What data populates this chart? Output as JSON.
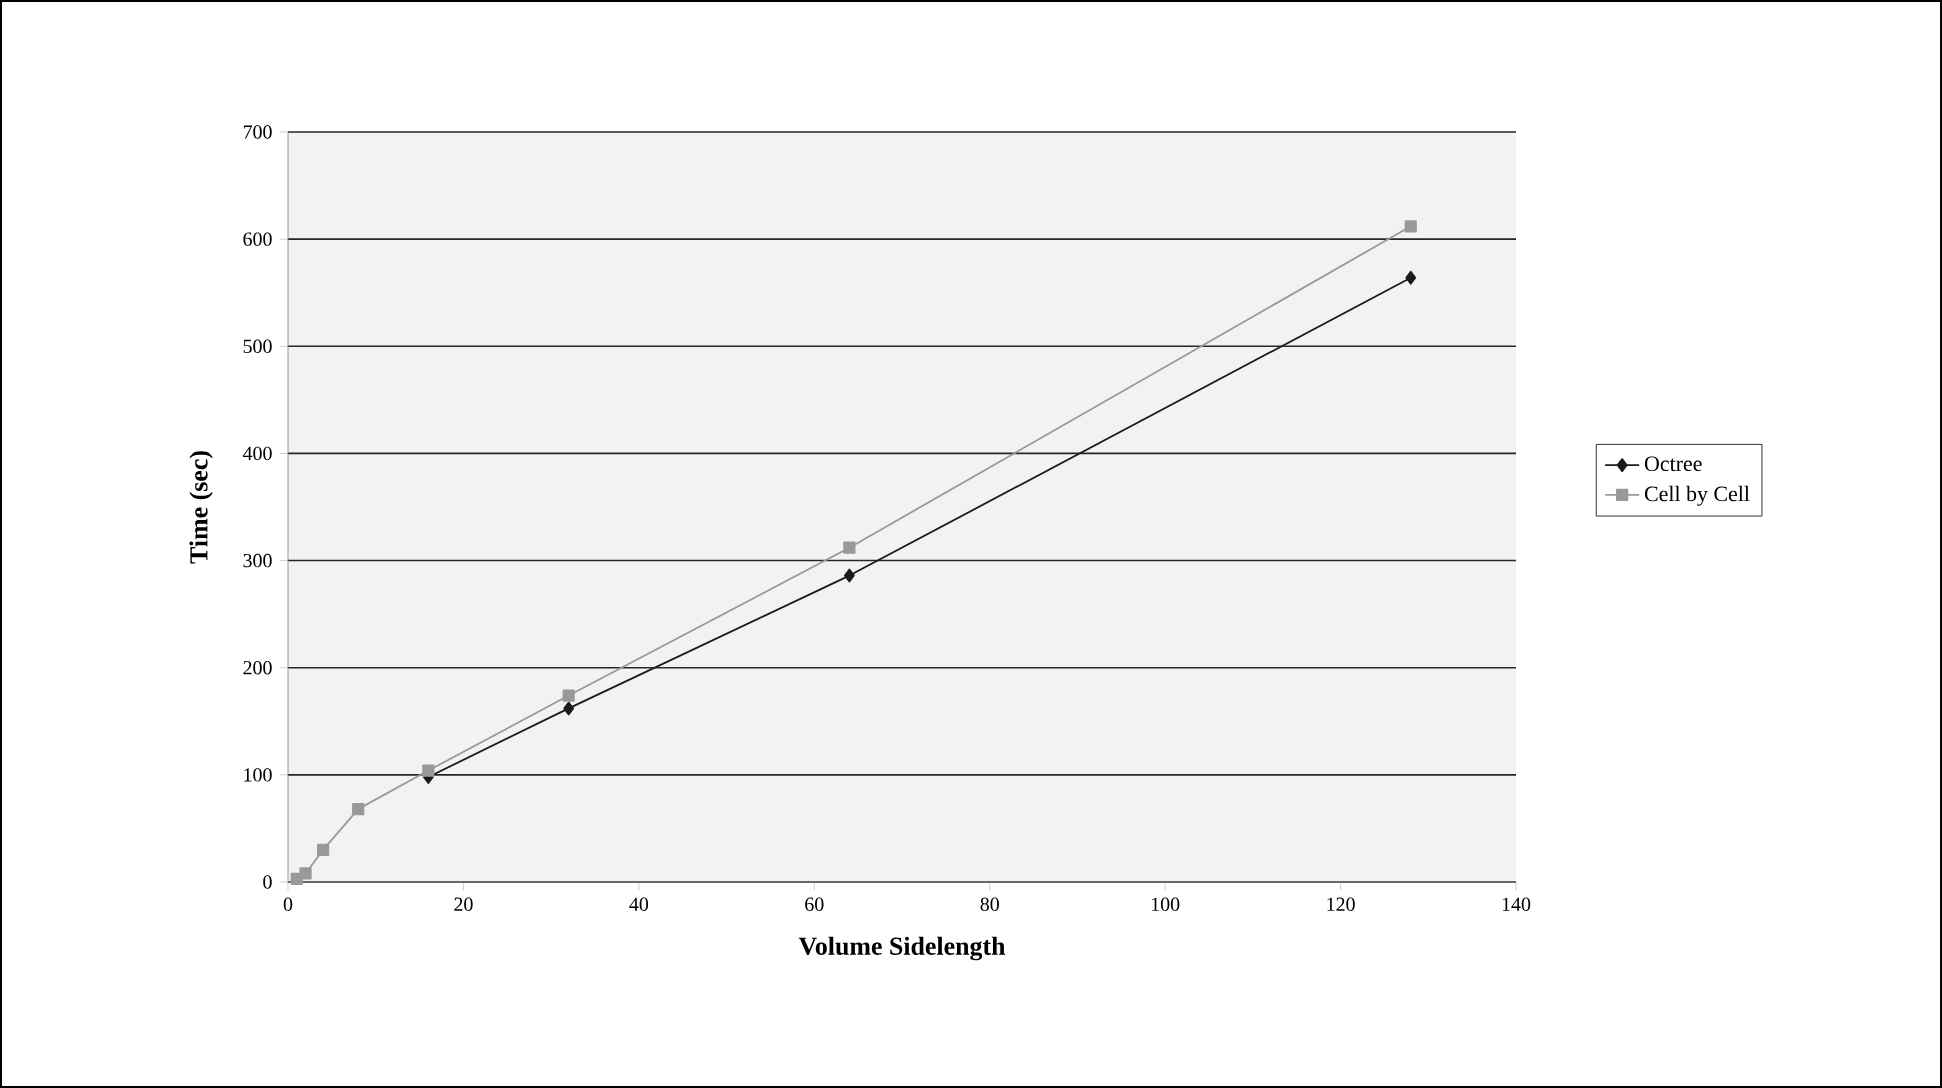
{
  "chart_data": {
    "type": "line",
    "xlabel": "Volume Sidelength",
    "ylabel": "Time (sec)",
    "x": [
      1,
      2,
      4,
      8,
      16,
      32,
      64,
      128
    ],
    "series": [
      {
        "name": "Octree",
        "color": "#1a1a1a",
        "marker": "diamond",
        "values": [
          null,
          null,
          null,
          null,
          98,
          162,
          286,
          564
        ]
      },
      {
        "name": "Cell by Cell",
        "color": "#999999",
        "marker": "square",
        "values": [
          3,
          8,
          30,
          68,
          104,
          174,
          312,
          612
        ]
      }
    ],
    "xlim": [
      0,
      140
    ],
    "xticks": [
      0,
      20,
      40,
      60,
      80,
      100,
      120,
      140
    ],
    "ylim": [
      0,
      700
    ],
    "yticks": [
      0,
      100,
      200,
      300,
      400,
      500,
      600,
      700
    ],
    "grid": "y",
    "legend": "right"
  }
}
